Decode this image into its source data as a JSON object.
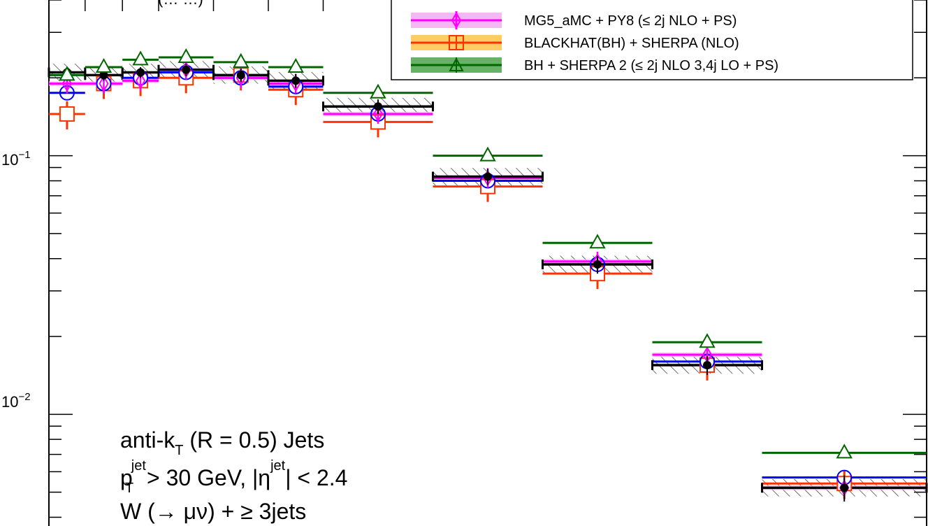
{
  "chart_data": {
    "type": "scatter",
    "y_scale": "log",
    "ylim": [
      0.0037,
      0.4
    ],
    "xlim": [
      0,
      8
    ],
    "grid": false,
    "legend_position": "top-right",
    "y_tick_labels": [
      {
        "base": "10",
        "exp": "−1",
        "value": 0.1
      },
      {
        "base": "10",
        "exp": "−2",
        "value": 0.01
      }
    ],
    "y_title_fragment": "(… …)",
    "annotations": [
      {
        "main": "anti-k",
        "sub": "T",
        "rest": " (R = 0.5) Jets"
      },
      {
        "main": "p",
        "sup": "jet",
        "sub": "T",
        "rest": " > 30 GeV, |η",
        "sup2": "jet",
        "rest2": "| < 2.4"
      },
      {
        "main": "W (→ μν) + ≥ 3jets"
      }
    ],
    "legend": [
      {
        "label": "MG5_aMC + PY8 (≤ 2j NLO + PS)",
        "color": "#ff00ff",
        "band_color": "#f5b8f5",
        "marker": "diamond"
      },
      {
        "label": "BLACKHAT(BH) + SHERPA (NLO)",
        "color": "#ff3300",
        "band_color": "#ffcc66",
        "marker": "square-plus"
      },
      {
        "label": "BH + SHERPA 2 (≤ 2j NLO 3,4j LO + PS)",
        "color": "#006600",
        "band_color": "#66b366",
        "marker": "triangle"
      }
    ],
    "bins": [
      {
        "lo": 0.0,
        "hi": 0.33,
        "data": 0.21,
        "data_unc": 0.01,
        "madgraph": 0.175,
        "mg5_amc": 0.19,
        "bh": 0.145,
        "sherpa2": 0.205
      },
      {
        "lo": 0.33,
        "hi": 0.67,
        "data": 0.205,
        "data_unc": 0.01,
        "madgraph": 0.19,
        "mg5_amc": 0.19,
        "bh": 0.19,
        "sherpa2": 0.22
      },
      {
        "lo": 0.67,
        "hi": 1.0,
        "data": 0.21,
        "data_unc": 0.01,
        "madgraph": 0.2,
        "mg5_amc": 0.195,
        "bh": 0.195,
        "sherpa2": 0.235
      },
      {
        "lo": 1.0,
        "hi": 1.5,
        "data": 0.215,
        "data_unc": 0.012,
        "madgraph": 0.21,
        "mg5_amc": 0.215,
        "bh": 0.2,
        "sherpa2": 0.24
      },
      {
        "lo": 1.5,
        "hi": 2.0,
        "data": 0.205,
        "data_unc": 0.012,
        "madgraph": 0.2,
        "mg5_amc": 0.2,
        "bh": 0.205,
        "sherpa2": 0.23
      },
      {
        "lo": 2.0,
        "hi": 2.5,
        "data": 0.195,
        "data_unc": 0.012,
        "madgraph": 0.185,
        "mg5_amc": 0.19,
        "bh": 0.18,
        "sherpa2": 0.22
      },
      {
        "lo": 2.5,
        "hi": 3.5,
        "data": 0.155,
        "data_unc": 0.01,
        "madgraph": 0.145,
        "mg5_amc": 0.145,
        "bh": 0.135,
        "sherpa2": 0.175
      },
      {
        "lo": 3.5,
        "hi": 4.5,
        "data": 0.083,
        "data_unc": 0.006,
        "madgraph": 0.08,
        "mg5_amc": 0.082,
        "bh": 0.076,
        "sherpa2": 0.1
      },
      {
        "lo": 4.5,
        "hi": 5.5,
        "data": 0.038,
        "data_unc": 0.003,
        "madgraph": 0.038,
        "mg5_amc": 0.039,
        "bh": 0.035,
        "sherpa2": 0.046
      },
      {
        "lo": 5.5,
        "hi": 6.5,
        "data": 0.0155,
        "data_unc": 0.0013,
        "madgraph": 0.016,
        "mg5_amc": 0.017,
        "bh": 0.0155,
        "sherpa2": 0.019
      },
      {
        "lo": 6.5,
        "hi": 8.0,
        "data": 0.0052,
        "data_unc": 0.0006,
        "madgraph": 0.0057,
        "mg5_amc": 0.0052,
        "bh": 0.0054,
        "sherpa2": 0.0071
      }
    ]
  },
  "colors": {
    "data": "#000000",
    "madgraph": "#0000ff",
    "mg5_amc": "#ff00ff",
    "bh": "#ff3300",
    "sherpa2": "#006600"
  }
}
